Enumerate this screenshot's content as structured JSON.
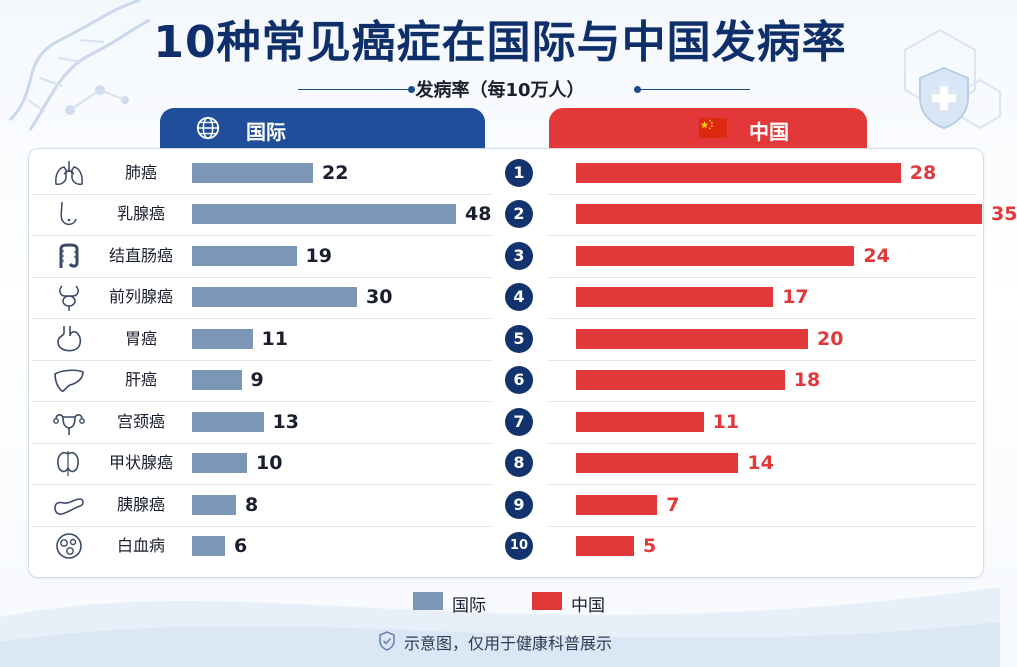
{
  "title": "10种常见癌症在国际与中国发病率",
  "subtitle": "发病率（每10万人）",
  "headers": {
    "intl": "国际",
    "cn": "中国"
  },
  "legend": {
    "intl": "国际",
    "cn": "中国"
  },
  "footer": "示意图，仅用于健康科普展示",
  "colors": {
    "intl": "#7c96b8",
    "cn": "#e2383a",
    "title": "#0f2f6b",
    "rank": "#13336e",
    "intl_header": "#1f4f9a"
  },
  "chart_data": {
    "type": "bar",
    "title": "10种常见癌症在国际与中国发病率",
    "subtitle": "发病率（每10万人）",
    "categories": [
      "肺癌",
      "乳腺癌",
      "结直肠癌",
      "前列腺癌",
      "胃癌",
      "肝癌",
      "宫颈癌",
      "甲状腺癌",
      "胰腺癌",
      "白血病"
    ],
    "icons": [
      "lungs-icon",
      "breast-icon",
      "colon-icon",
      "prostate-icon",
      "stomach-icon",
      "liver-icon",
      "uterus-icon",
      "thyroid-icon",
      "pancreas-icon",
      "blood-cell-icon"
    ],
    "ranks": [
      "1",
      "2",
      "3",
      "4",
      "5",
      "6",
      "7",
      "8",
      "9",
      "10"
    ],
    "series": [
      {
        "name": "国际",
        "values": [
          22,
          48,
          19,
          30,
          11,
          9,
          13,
          10,
          8,
          6
        ]
      },
      {
        "name": "中国",
        "values": [
          28,
          35,
          24,
          17,
          20,
          18,
          11,
          14,
          7,
          5
        ]
      }
    ],
    "orientation": "horizontal",
    "legend_position": "bottom-center",
    "grid": false
  }
}
